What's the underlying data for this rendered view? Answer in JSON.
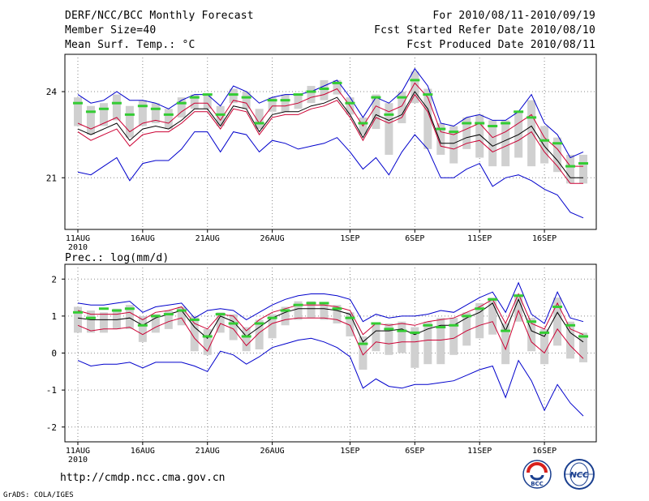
{
  "header": {
    "title": "DERF/NCC/BCC Monthly Forecast",
    "member_size": "Member Size=40",
    "variable1": "Mean Surf. Temp.: °C",
    "forecast_period": "For 2010/08/11-2010/09/19",
    "start_date": "Fcst Started Refer Date 2010/08/10",
    "produced_date": "Fcst Produced Date 2010/08/11"
  },
  "panel2_label": "Prec.: log(mm/d)",
  "footer": {
    "url": "http://cmdp.ncc.cma.gov.cn",
    "credit": "GrADS: COLA/IGES"
  },
  "logos": {
    "bcc": "BCC",
    "ncc": "NCC"
  },
  "colors": {
    "max": "#0000cc",
    "min": "#0000cc",
    "upper": "#cc0033",
    "lower": "#cc0033",
    "mean": "#000000",
    "median": "#33cc33",
    "box": "#d0d0d0"
  },
  "chart_data": [
    {
      "type": "box-line",
      "title": "Mean Surf. Temp.: °C",
      "x_tick_labels": [
        "11AUG",
        "16AUG",
        "21AUG",
        "26AUG",
        "1SEP",
        "6SEP",
        "11SEP",
        "16SEP"
      ],
      "x_tick_days": [
        0,
        5,
        10,
        15,
        21,
        26,
        31,
        36
      ],
      "year_label": "2010",
      "xlim": [
        -1,
        40
      ],
      "ylim": [
        19.2,
        25.3
      ],
      "y_ticks": [
        21,
        24
      ],
      "grid": true,
      "series": {
        "max": [
          23.9,
          23.6,
          23.7,
          24.0,
          23.7,
          23.7,
          23.6,
          23.4,
          23.7,
          23.9,
          23.9,
          23.5,
          24.2,
          24.0,
          23.6,
          23.8,
          23.9,
          23.9,
          24.0,
          24.2,
          24.4,
          23.8,
          23.1,
          23.8,
          23.6,
          24.0,
          24.8,
          24.2,
          22.9,
          22.8,
          23.1,
          23.2,
          23.0,
          23.0,
          23.3,
          23.9,
          22.9,
          22.5,
          21.7,
          21.9
        ],
        "upper": [
          22.9,
          22.7,
          22.9,
          23.1,
          22.6,
          22.9,
          23.0,
          22.9,
          23.3,
          23.6,
          23.6,
          23.0,
          23.7,
          23.6,
          22.9,
          23.5,
          23.5,
          23.6,
          23.8,
          23.9,
          24.1,
          23.5,
          22.8,
          23.5,
          23.3,
          23.5,
          24.3,
          23.8,
          22.6,
          22.5,
          22.7,
          22.9,
          22.4,
          22.6,
          22.9,
          23.2,
          22.4,
          22.0,
          21.4,
          21.4
        ],
        "mean": [
          22.7,
          22.5,
          22.7,
          22.9,
          22.3,
          22.7,
          22.8,
          22.7,
          23.0,
          23.4,
          23.4,
          22.8,
          23.5,
          23.4,
          22.6,
          23.2,
          23.3,
          23.3,
          23.5,
          23.6,
          23.8,
          23.2,
          22.4,
          23.2,
          23.0,
          23.2,
          24.0,
          23.4,
          22.2,
          22.2,
          22.4,
          22.5,
          22.1,
          22.3,
          22.5,
          22.8,
          22.1,
          21.6,
          21.0,
          21.0
        ],
        "lower": [
          22.6,
          22.3,
          22.5,
          22.7,
          22.1,
          22.5,
          22.6,
          22.6,
          22.9,
          23.3,
          23.3,
          22.7,
          23.4,
          23.3,
          22.5,
          23.1,
          23.2,
          23.2,
          23.4,
          23.5,
          23.7,
          23.1,
          22.3,
          23.1,
          22.9,
          23.1,
          23.9,
          23.3,
          22.1,
          22.0,
          22.2,
          22.3,
          21.9,
          22.1,
          22.3,
          22.6,
          21.9,
          21.4,
          20.8,
          20.8
        ],
        "min": [
          21.2,
          21.1,
          21.4,
          21.7,
          20.9,
          21.5,
          21.6,
          21.6,
          22.0,
          22.6,
          22.6,
          21.9,
          22.6,
          22.5,
          21.9,
          22.3,
          22.2,
          22.0,
          22.1,
          22.2,
          22.4,
          21.9,
          21.3,
          21.7,
          21.1,
          21.9,
          22.5,
          22.0,
          21.0,
          21.0,
          21.3,
          21.5,
          20.7,
          21.0,
          21.1,
          20.9,
          20.6,
          20.4,
          19.8,
          19.6
        ],
        "median": [
          23.6,
          23.3,
          23.4,
          23.6,
          23.2,
          23.5,
          23.4,
          23.2,
          23.6,
          23.8,
          23.9,
          23.2,
          23.9,
          23.8,
          22.9,
          23.7,
          23.7,
          23.9,
          24.0,
          24.1,
          24.3,
          23.6,
          22.9,
          23.8,
          23.2,
          23.8,
          24.4,
          23.9,
          22.7,
          22.6,
          22.9,
          22.9,
          22.8,
          22.9,
          23.3,
          23.1,
          22.3,
          22.2,
          21.4,
          21.5
        ],
        "box_high": [
          23.8,
          23.5,
          23.6,
          23.9,
          23.5,
          23.7,
          23.6,
          23.4,
          23.8,
          23.9,
          23.9,
          23.5,
          24.1,
          24.0,
          23.4,
          23.8,
          23.9,
          23.9,
          24.2,
          24.4,
          24.4,
          23.8,
          23.1,
          23.9,
          23.6,
          24.0,
          24.7,
          24.1,
          22.9,
          22.8,
          23.1,
          23.2,
          23.0,
          23.0,
          23.3,
          23.7,
          22.8,
          22.4,
          21.8,
          21.8
        ],
        "box_low": [
          22.8,
          22.5,
          22.8,
          23.0,
          22.4,
          22.8,
          22.9,
          22.7,
          23.1,
          23.4,
          23.4,
          22.8,
          23.6,
          23.4,
          22.7,
          23.3,
          23.3,
          23.4,
          23.6,
          23.7,
          23.9,
          23.2,
          22.5,
          22.7,
          21.8,
          22.9,
          23.6,
          22.0,
          21.8,
          21.5,
          22.0,
          21.7,
          21.4,
          21.4,
          21.7,
          21.4,
          21.5,
          21.2,
          20.8,
          20.8
        ]
      }
    },
    {
      "type": "box-line",
      "title": "Prec.: log(mm/d)",
      "x_tick_labels": [
        "11AUG",
        "16AUG",
        "21AUG",
        "26AUG",
        "1SEP",
        "6SEP",
        "11SEP",
        "16SEP"
      ],
      "x_tick_days": [
        0,
        5,
        10,
        15,
        21,
        26,
        31,
        36
      ],
      "year_label": "2010",
      "xlim": [
        -1,
        40
      ],
      "ylim": [
        -2.4,
        2.4
      ],
      "y_ticks": [
        -2,
        -1,
        0,
        1,
        2
      ],
      "grid": true,
      "series": {
        "max": [
          1.35,
          1.3,
          1.3,
          1.35,
          1.4,
          1.1,
          1.25,
          1.3,
          1.35,
          0.95,
          1.15,
          1.2,
          1.15,
          0.9,
          1.1,
          1.3,
          1.45,
          1.55,
          1.6,
          1.6,
          1.55,
          1.45,
          0.85,
          1.05,
          0.95,
          1.0,
          1.0,
          1.05,
          1.15,
          1.1,
          1.3,
          1.5,
          1.65,
          1.1,
          1.9,
          1.05,
          0.8,
          1.65,
          0.95,
          0.85
        ],
        "upper": [
          1.15,
          1.05,
          1.05,
          1.05,
          1.1,
          0.9,
          1.1,
          1.15,
          1.25,
          0.8,
          0.65,
          1.05,
          1.0,
          0.6,
          0.9,
          1.1,
          1.2,
          1.3,
          1.3,
          1.3,
          1.25,
          1.15,
          0.5,
          0.8,
          0.75,
          0.8,
          0.75,
          0.85,
          0.9,
          0.95,
          1.1,
          1.25,
          1.45,
          0.8,
          1.6,
          0.8,
          0.65,
          1.35,
          0.65,
          0.5
        ],
        "mean": [
          0.95,
          0.9,
          0.9,
          0.9,
          0.95,
          0.75,
          0.95,
          1.05,
          1.15,
          0.7,
          0.4,
          1.0,
          0.85,
          0.45,
          0.7,
          0.95,
          1.1,
          1.2,
          1.2,
          1.2,
          1.15,
          1.05,
          0.3,
          0.6,
          0.6,
          0.65,
          0.5,
          0.65,
          0.75,
          0.75,
          0.95,
          1.1,
          1.35,
          0.6,
          1.45,
          0.6,
          0.45,
          1.1,
          0.55,
          0.3
        ],
        "lower": [
          0.75,
          0.6,
          0.65,
          0.65,
          0.7,
          0.5,
          0.7,
          0.85,
          0.95,
          0.4,
          0.05,
          0.8,
          0.65,
          0.2,
          0.55,
          0.8,
          0.9,
          0.95,
          0.95,
          0.95,
          0.9,
          0.75,
          -0.05,
          0.3,
          0.25,
          0.3,
          0.3,
          0.35,
          0.35,
          0.4,
          0.6,
          0.75,
          0.85,
          0.1,
          1.15,
          0.3,
          0.0,
          0.65,
          0.2,
          -0.15
        ],
        "min": [
          -0.2,
          -0.35,
          -0.3,
          -0.3,
          -0.25,
          -0.4,
          -0.25,
          -0.25,
          -0.25,
          -0.35,
          -0.5,
          0.05,
          -0.05,
          -0.3,
          -0.1,
          0.15,
          0.25,
          0.35,
          0.4,
          0.3,
          0.15,
          -0.1,
          -0.95,
          -0.7,
          -0.9,
          -0.95,
          -0.85,
          -0.85,
          -0.8,
          -0.75,
          -0.6,
          -0.45,
          -0.35,
          -1.2,
          -0.2,
          -0.75,
          -1.55,
          -0.85,
          -1.35,
          -1.7
        ],
        "median": [
          1.1,
          0.95,
          1.2,
          1.15,
          1.2,
          0.75,
          1.0,
          1.05,
          1.15,
          0.9,
          0.45,
          1.05,
          0.8,
          0.45,
          0.8,
          0.95,
          1.15,
          1.3,
          1.35,
          1.35,
          1.2,
          0.95,
          0.25,
          0.8,
          0.65,
          0.6,
          0.55,
          0.75,
          0.7,
          0.75,
          1.0,
          1.2,
          1.45,
          0.6,
          1.55,
          0.85,
          0.55,
          1.25,
          0.75,
          0.45
        ],
        "box_high": [
          1.25,
          1.15,
          1.1,
          1.2,
          1.3,
          1.0,
          1.05,
          1.15,
          1.25,
          1.0,
          0.65,
          1.1,
          1.05,
          0.7,
          0.9,
          1.05,
          1.25,
          1.4,
          1.4,
          1.35,
          1.3,
          1.1,
          0.45,
          0.8,
          0.8,
          0.85,
          0.7,
          0.85,
          0.95,
          0.95,
          1.1,
          1.35,
          1.5,
          0.8,
          1.6,
          0.95,
          0.65,
          1.5,
          0.85,
          0.55
        ],
        "box_low": [
          0.55,
          0.55,
          0.55,
          0.65,
          0.65,
          0.3,
          0.55,
          0.65,
          0.75,
          0.05,
          -0.05,
          0.55,
          0.35,
          0.05,
          0.1,
          0.4,
          0.75,
          0.9,
          0.95,
          0.9,
          0.8,
          0.45,
          -0.45,
          0.05,
          -0.05,
          0.0,
          -0.4,
          -0.3,
          -0.3,
          -0.05,
          0.2,
          0.4,
          0.5,
          -0.3,
          0.85,
          0.05,
          -0.3,
          0.2,
          -0.15,
          -0.25
        ]
      }
    }
  ]
}
